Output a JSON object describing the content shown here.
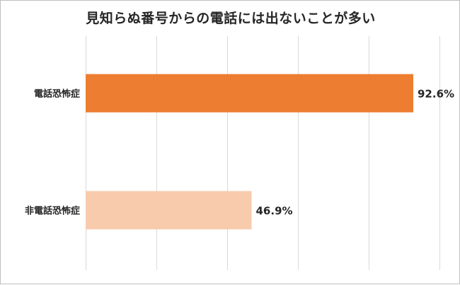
{
  "chart_data": {
    "type": "bar",
    "orientation": "horizontal",
    "title": "見知らぬ番号からの電話には出ないことが多い",
    "categories": [
      "電話恐怖症",
      "非電話恐怖症"
    ],
    "values": [
      92.6,
      46.9
    ],
    "data_labels": [
      "92.6%",
      "46.9%"
    ],
    "colors": [
      "#ed7d31",
      "#f8cbad"
    ],
    "xlim": [
      0,
      100
    ],
    "grid": true,
    "legend": "none"
  }
}
